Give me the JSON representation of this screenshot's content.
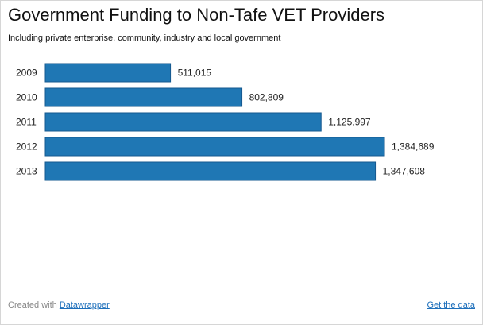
{
  "chart_data": {
    "type": "bar",
    "orientation": "horizontal",
    "title": "Government Funding to Non-Tafe VET Providers",
    "subtitle": "Including private enterprise, community, industry and local government",
    "categories": [
      "2009",
      "2010",
      "2011",
      "2012",
      "2013"
    ],
    "values": [
      511015,
      802809,
      1125997,
      1384689,
      1347608
    ],
    "value_labels": [
      "511,015",
      "802,809",
      "1,125,997",
      "1,384,689",
      "1,347,608"
    ],
    "xlim": [
      0,
      1384689
    ],
    "grid": false,
    "bar_color": "#1f77b4"
  },
  "footer": {
    "created_with": "Created with ",
    "datawrapper_link": "Datawrapper",
    "get_data_link": "Get the data"
  }
}
